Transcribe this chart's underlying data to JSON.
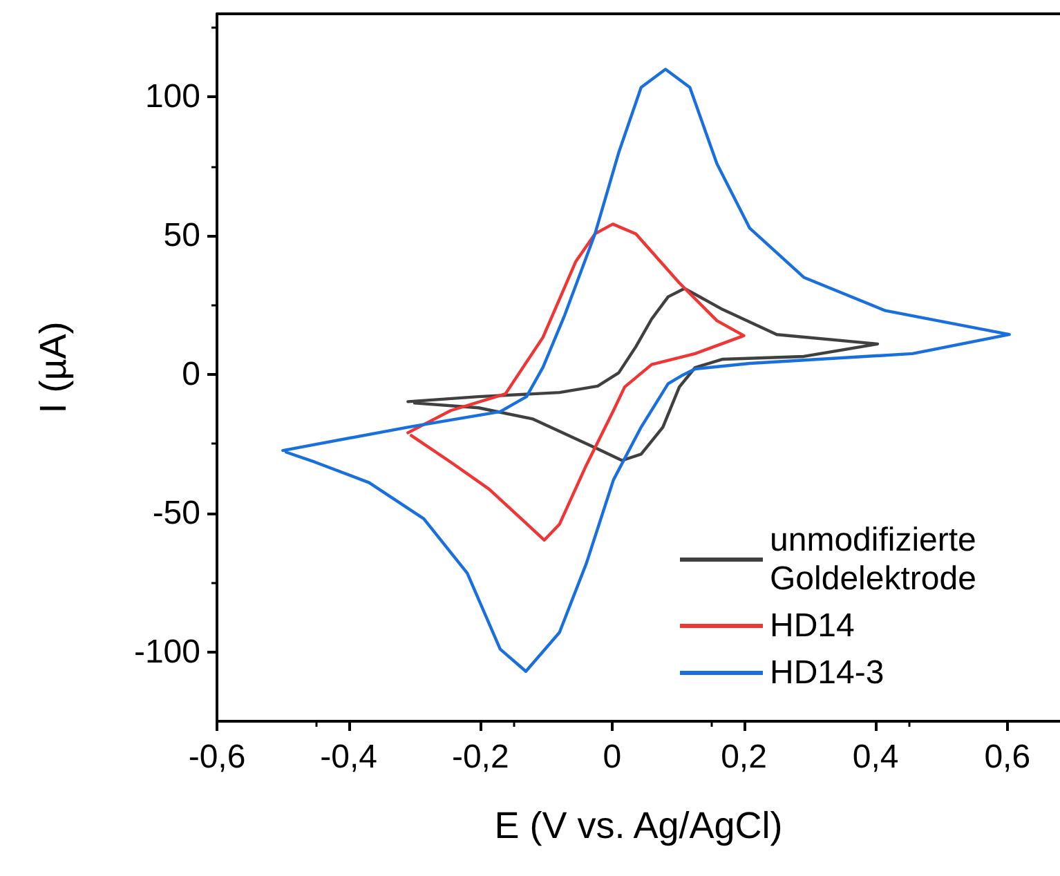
{
  "chart_data": {
    "type": "line",
    "xlabel": "E (V vs. Ag/AgCl)",
    "ylabel": "I (µA)",
    "xlim": [
      -0.6,
      0.68
    ],
    "ylim": [
      -125,
      130
    ],
    "xticks": [
      {
        "value": -0.6,
        "label": "-0,6"
      },
      {
        "value": -0.4,
        "label": "-0,4"
      },
      {
        "value": -0.2,
        "label": "-0,2"
      },
      0,
      {
        "value": 0.2,
        "label": "0,2"
      },
      {
        "value": 0.4,
        "label": "0,4"
      },
      {
        "value": 0.6,
        "label": "0,6"
      }
    ],
    "yticks": [
      -100,
      -50,
      0,
      50,
      100
    ],
    "grid": false,
    "legend": "bottom right",
    "marker": "none",
    "line_style": "solid",
    "series": [
      {
        "name": "unmodifizierte Goldelektrode",
        "color": "#404040",
        "x": [
          -0.31,
          -0.203,
          -0.08,
          -0.022,
          0.01,
          0.036,
          0.06,
          0.085,
          0.11,
          0.168,
          0.25,
          0.403,
          0.291,
          0.168,
          0.126,
          0.102,
          0.077,
          0.044,
          0.015,
          -0.022,
          -0.121,
          -0.203,
          -0.3
        ],
        "values": [
          -9.8,
          -8,
          -6.5,
          -4.2,
          0.6,
          10,
          20,
          28,
          31,
          23.4,
          14.4,
          11,
          6.5,
          5.5,
          2.5,
          -4.5,
          -19,
          -28.7,
          -31,
          -26.8,
          -16,
          -12,
          -10.3
        ]
      },
      {
        "name": "HD14",
        "color": "#f03535",
        "x": [
          -0.31,
          -0.245,
          -0.162,
          -0.105,
          -0.055,
          -0.026,
          0.001,
          0.036,
          0.102,
          0.159,
          0.2,
          0.126,
          0.06,
          0.019,
          0.002,
          -0.039,
          -0.08,
          -0.103,
          -0.138,
          -0.187,
          -0.245,
          -0.305
        ],
        "values": [
          -21,
          -13,
          -7,
          13.4,
          40.8,
          50.7,
          54.2,
          50.7,
          33,
          19.4,
          14,
          7.5,
          3.6,
          -4.5,
          -13,
          -32.6,
          -54,
          -59.7,
          -52,
          -41.3,
          -31.6,
          -22
        ]
      },
      {
        "name": "HD14-3",
        "color": "#1a6fdf",
        "x": [
          -0.5,
          -0.31,
          -0.17,
          -0.13,
          -0.105,
          -0.072,
          -0.026,
          0.01,
          0.044,
          0.081,
          0.118,
          0.159,
          0.209,
          0.291,
          0.415,
          0.603,
          0.456,
          0.209,
          0.126,
          0.105,
          0.085,
          0.044,
          0.002,
          -0.039,
          -0.08,
          -0.131,
          -0.17,
          -0.22,
          -0.286,
          -0.369,
          -0.451,
          -0.495
        ],
        "values": [
          -27.4,
          -19,
          -13.4,
          -8,
          2.6,
          21.4,
          50.7,
          80,
          103.5,
          110,
          103.5,
          76,
          52.7,
          35,
          23,
          14.4,
          7.5,
          4,
          2,
          -0.5,
          -3.3,
          -19,
          -38,
          -68,
          -93,
          -107,
          -99,
          -71.6,
          -52,
          -39,
          -31.6,
          -28
        ]
      }
    ]
  }
}
